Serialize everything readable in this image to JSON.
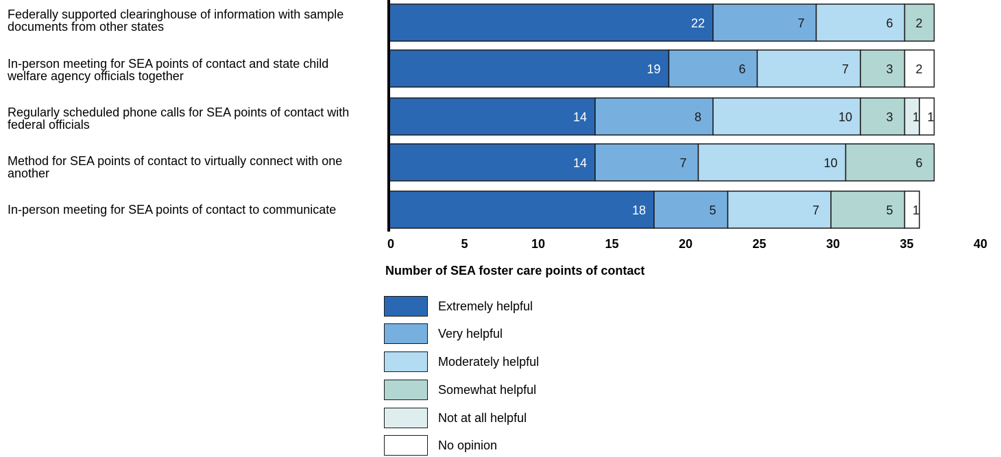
{
  "chart_data": {
    "type": "bar",
    "orientation": "horizontal",
    "stacked": true,
    "categories": [
      "Federally supported clearinghouse of information with sample documents from other states",
      "In-person meeting for SEA points of contact and state child welfare agency officials together",
      "Regularly scheduled phone calls for SEA points of contact with federal officials",
      "Method for SEA points of contact to virtually connect with one another",
      "In-person meeting for SEA points of contact to communicate"
    ],
    "series": [
      {
        "name": "Extremely helpful",
        "color": "#2a68b4",
        "values": [
          22,
          19,
          14,
          14,
          18
        ]
      },
      {
        "name": "Very helpful",
        "color": "#77b0df",
        "values": [
          7,
          6,
          8,
          7,
          5
        ]
      },
      {
        "name": "Moderately helpful",
        "color": "#b3dbf1",
        "values": [
          6,
          7,
          10,
          10,
          7
        ]
      },
      {
        "name": "Somewhat helpful",
        "color": "#b2d6d2",
        "values": [
          2,
          3,
          3,
          6,
          5
        ]
      },
      {
        "name": "Not at all helpful",
        "color": "#deeeee",
        "values": [
          0,
          0,
          1,
          0,
          0
        ]
      },
      {
        "name": "No opinion",
        "color": "#ffffff",
        "values": [
          0,
          2,
          1,
          0,
          1
        ]
      }
    ],
    "xlabel": "Number of SEA foster care points of contact",
    "xlim": [
      0,
      40
    ],
    "xticks": [
      0,
      5,
      10,
      15,
      20,
      25,
      30,
      35,
      40
    ],
    "grid": false,
    "legend_position": "bottom"
  }
}
